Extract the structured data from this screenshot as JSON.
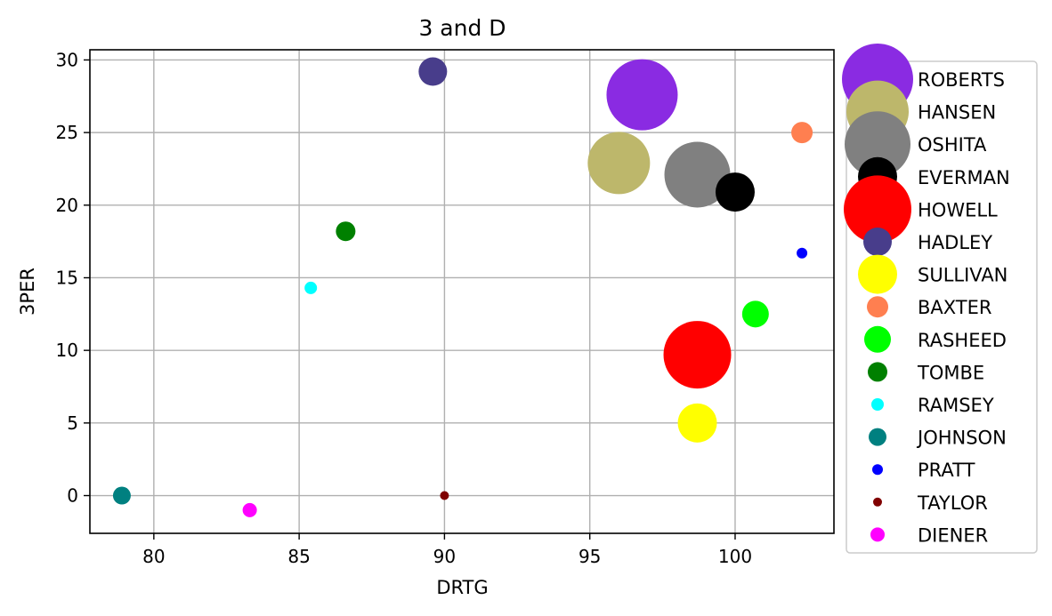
{
  "chart_data": {
    "type": "scatter",
    "title": "3 and D",
    "xlabel": "DRTG",
    "ylabel": "3PER",
    "xlim": [
      77.8,
      103.4
    ],
    "ylim": [
      -2.6,
      30.7
    ],
    "xticks": [
      80,
      85,
      90,
      95,
      100
    ],
    "yticks": [
      0,
      5,
      10,
      15,
      20,
      25,
      30
    ],
    "grid": true,
    "legend_position": "outside right",
    "series": [
      {
        "name": "ROBERTS",
        "x": 96.8,
        "y": 27.6,
        "size": 40,
        "color": "#8A2BE2"
      },
      {
        "name": "HANSEN",
        "x": 96.0,
        "y": 22.9,
        "size": 35,
        "color": "#BDB76B"
      },
      {
        "name": "OSHITA",
        "x": 98.7,
        "y": 22.1,
        "size": 37,
        "color": "#808080"
      },
      {
        "name": "EVERMAN",
        "x": 100.0,
        "y": 20.9,
        "size": 22,
        "color": "#000000"
      },
      {
        "name": "HOWELL",
        "x": 98.7,
        "y": 9.7,
        "size": 38,
        "color": "#FF0000"
      },
      {
        "name": "HADLEY",
        "x": 89.6,
        "y": 29.2,
        "size": 16,
        "color": "#483D8B"
      },
      {
        "name": "SULLIVAN",
        "x": 98.7,
        "y": 5.0,
        "size": 22,
        "color": "#FFFF00"
      },
      {
        "name": "BAXTER",
        "x": 102.3,
        "y": 25.0,
        "size": 12,
        "color": "#FF7F50"
      },
      {
        "name": "RASHEED",
        "x": 100.7,
        "y": 12.5,
        "size": 15,
        "color": "#00FF00"
      },
      {
        "name": "TOMBE",
        "x": 86.6,
        "y": 18.2,
        "size": 11,
        "color": "#008000"
      },
      {
        "name": "RAMSEY",
        "x": 85.4,
        "y": 14.3,
        "size": 7,
        "color": "#00FFFF"
      },
      {
        "name": "JOHNSON",
        "x": 78.9,
        "y": 0.0,
        "size": 10,
        "color": "#008080"
      },
      {
        "name": "PRATT",
        "x": 102.3,
        "y": 16.7,
        "size": 6,
        "color": "#0000FF"
      },
      {
        "name": "TAYLOR",
        "x": 90.0,
        "y": 0.0,
        "size": 5,
        "color": "#800000"
      },
      {
        "name": "DIENER",
        "x": 83.3,
        "y": -1.0,
        "size": 8,
        "color": "#FF00FF"
      }
    ]
  }
}
